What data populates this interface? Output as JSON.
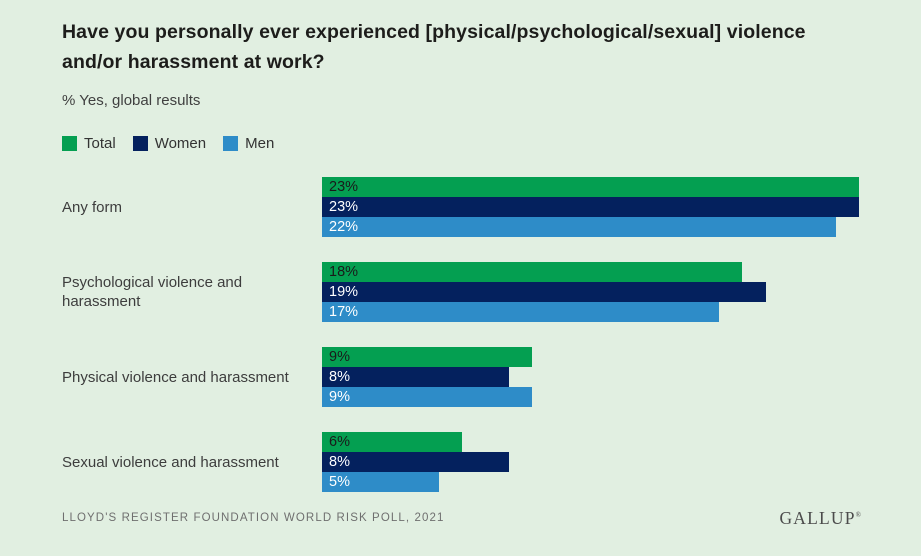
{
  "theme": {
    "page_bg": "#e1efe1"
  },
  "chart_data": {
    "type": "bar",
    "orientation": "horizontal",
    "title": "Have you personally ever experienced [physical/psychological/sexual] violence and/or harassment at work?",
    "subtitle": "% Yes, global results",
    "categories": [
      "Any form",
      "Psychological violence and harassment",
      "Physical violence and harassment",
      "Sexual violence and harassment"
    ],
    "series": [
      {
        "name": "Total",
        "color": "#049f51",
        "value_text_color": "#1a1a1a",
        "values": [
          23,
          18,
          9,
          6
        ]
      },
      {
        "name": "Women",
        "color": "#04215e",
        "value_text_color": "#ffffff",
        "values": [
          23,
          19,
          8,
          8
        ]
      },
      {
        "name": "Men",
        "color": "#2e8cc8",
        "value_text_color": "#ffffff",
        "values": [
          22,
          17,
          9,
          5
        ]
      }
    ],
    "value_suffix": "%",
    "xmax": 23,
    "grid": false,
    "legend_position": "top-left"
  },
  "footer": {
    "source": "LLOYD'S REGISTER FOUNDATION WORLD RISK POLL, 2021",
    "brand": "GALLUP",
    "brand_mark": "®"
  }
}
